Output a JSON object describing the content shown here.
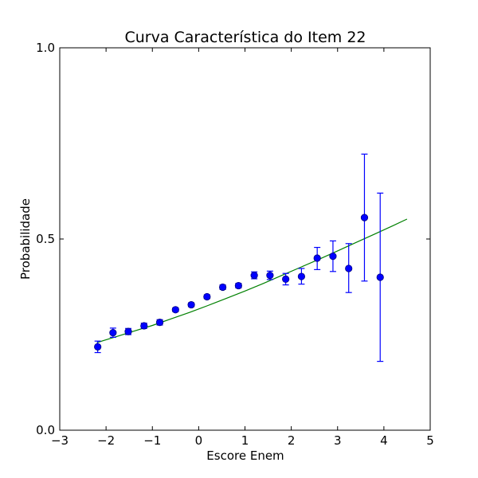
{
  "chart_data": {
    "type": "scatter",
    "title": "Curva Característica do Item 22",
    "xlabel": "Escore Enem",
    "ylabel": "Probabilidade",
    "xlim": [
      -3,
      5
    ],
    "ylim": [
      0.0,
      1.0
    ],
    "x_ticks": [
      -3,
      -2,
      -1,
      0,
      1,
      2,
      3,
      4,
      5
    ],
    "x_tick_labels": [
      "−3",
      "−2",
      "−1",
      "0",
      "1",
      "2",
      "3",
      "4",
      "5"
    ],
    "y_ticks": [
      0.0,
      0.5,
      1.0
    ],
    "y_tick_labels": [
      "0.0",
      "0.5",
      "1.0"
    ],
    "grid": false,
    "series": [
      {
        "kind": "errorbar",
        "color": "#0000ff",
        "points": [
          {
            "x": -2.18,
            "y": 0.218,
            "lo": 0.203,
            "hi": 0.233
          },
          {
            "x": -1.85,
            "y": 0.255,
            "lo": 0.243,
            "hi": 0.267
          },
          {
            "x": -1.52,
            "y": 0.258,
            "lo": 0.25,
            "hi": 0.266
          },
          {
            "x": -1.18,
            "y": 0.273,
            "lo": 0.266,
            "hi": 0.28
          },
          {
            "x": -0.84,
            "y": 0.282,
            "lo": 0.275,
            "hi": 0.289
          },
          {
            "x": -0.5,
            "y": 0.315,
            "lo": 0.31,
            "hi": 0.32
          },
          {
            "x": -0.16,
            "y": 0.328,
            "lo": 0.323,
            "hi": 0.333
          },
          {
            "x": 0.18,
            "y": 0.349,
            "lo": 0.344,
            "hi": 0.354
          },
          {
            "x": 0.52,
            "y": 0.374,
            "lo": 0.368,
            "hi": 0.38
          },
          {
            "x": 0.86,
            "y": 0.378,
            "lo": 0.372,
            "hi": 0.384
          },
          {
            "x": 1.2,
            "y": 0.405,
            "lo": 0.396,
            "hi": 0.414
          },
          {
            "x": 1.54,
            "y": 0.405,
            "lo": 0.394,
            "hi": 0.416
          },
          {
            "x": 1.88,
            "y": 0.395,
            "lo": 0.38,
            "hi": 0.41
          },
          {
            "x": 2.22,
            "y": 0.402,
            "lo": 0.382,
            "hi": 0.423
          },
          {
            "x": 2.56,
            "y": 0.45,
            "lo": 0.42,
            "hi": 0.478
          },
          {
            "x": 2.9,
            "y": 0.455,
            "lo": 0.415,
            "hi": 0.495
          },
          {
            "x": 3.24,
            "y": 0.423,
            "lo": 0.36,
            "hi": 0.488
          },
          {
            "x": 3.58,
            "y": 0.556,
            "lo": 0.39,
            "hi": 0.722
          },
          {
            "x": 3.92,
            "y": 0.4,
            "lo": 0.18,
            "hi": 0.62
          }
        ]
      },
      {
        "kind": "line",
        "color": "#008000",
        "x": [
          -2.2,
          -1.8,
          -1.4,
          -1.0,
          -0.6,
          -0.2,
          0.2,
          0.6,
          1.0,
          1.4,
          1.8,
          2.2,
          2.6,
          3.0,
          3.4,
          3.8,
          4.2,
          4.5
        ],
        "y": [
          0.229,
          0.244,
          0.259,
          0.274,
          0.291,
          0.308,
          0.326,
          0.345,
          0.364,
          0.384,
          0.405,
          0.426,
          0.447,
          0.469,
          0.491,
          0.513,
          0.535,
          0.552
        ]
      }
    ]
  }
}
